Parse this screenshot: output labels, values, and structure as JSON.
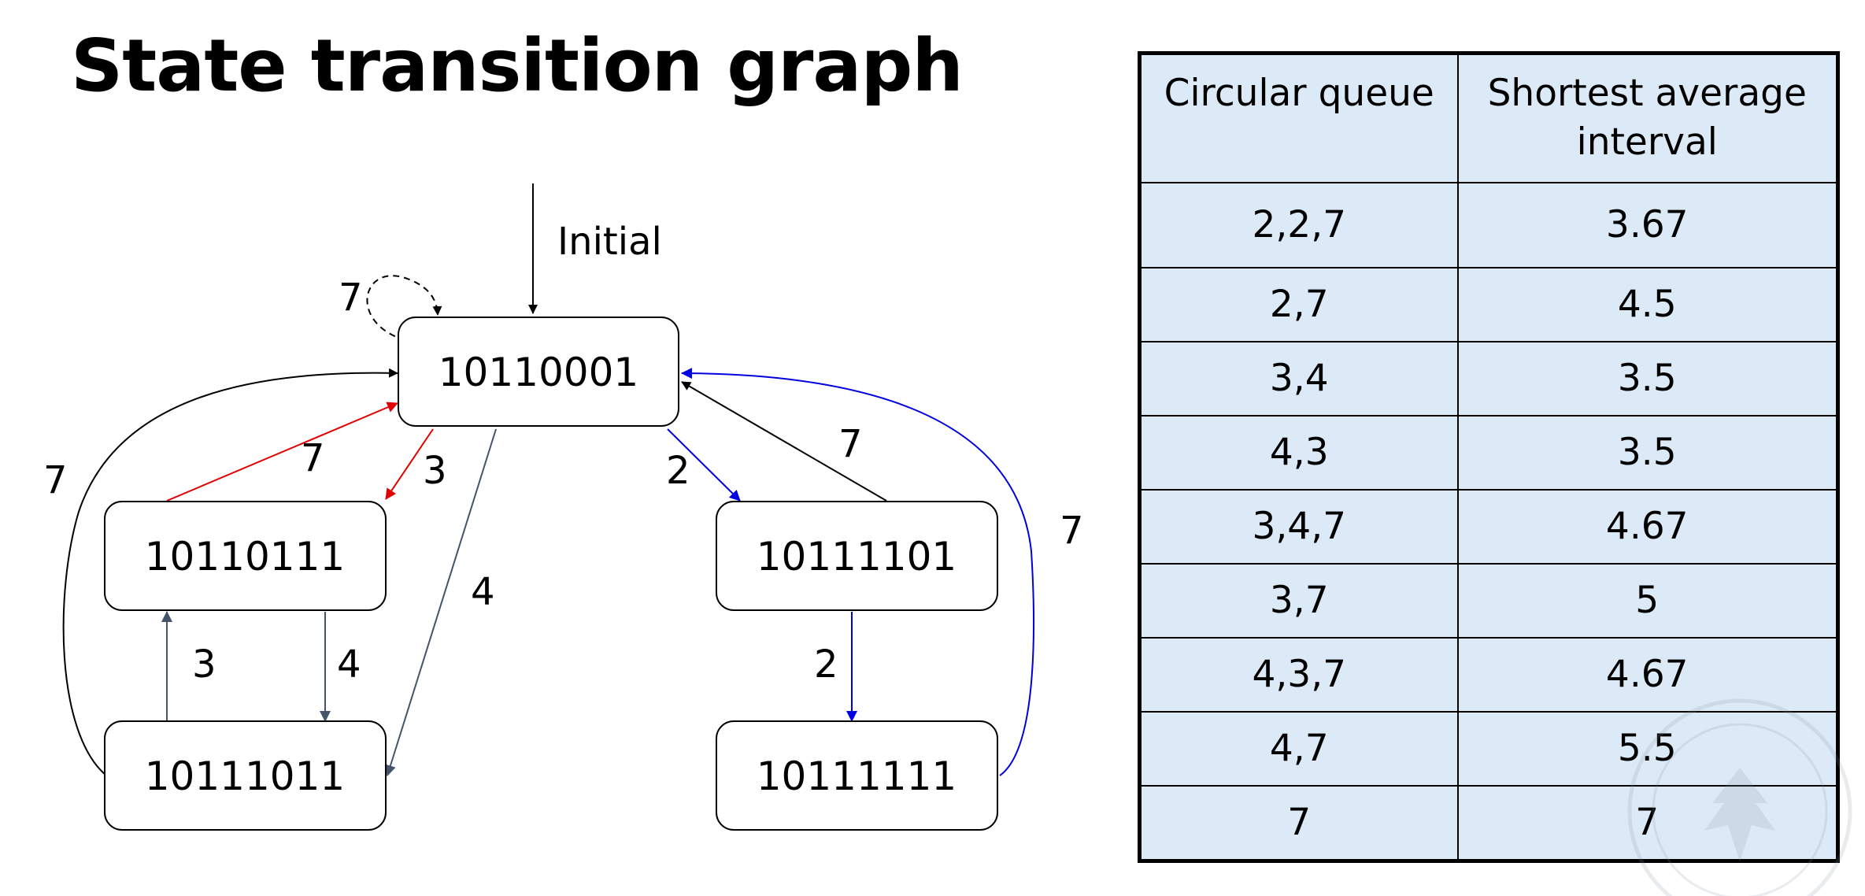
{
  "title": "State transition graph",
  "diagram": {
    "initial_label": "Initial",
    "states": {
      "s0": "10110001",
      "s1": "10110111",
      "s2": "10111011",
      "s3": "10111101",
      "s4": "10111111"
    },
    "edges": [
      {
        "from": "s0",
        "to": "s0",
        "label": "7",
        "style": "dashed",
        "color": "#000000"
      },
      {
        "from": "s0",
        "to": "s1",
        "label": "3",
        "color": "#e00000"
      },
      {
        "from": "s1",
        "to": "s0",
        "label": "7",
        "color": "#e00000"
      },
      {
        "from": "s0",
        "to": "s2",
        "label": "4",
        "color": "#44546a"
      },
      {
        "from": "s0",
        "to": "s3",
        "label": "2",
        "color": "#0000e0"
      },
      {
        "from": "s3",
        "to": "s0",
        "label": "7",
        "color": "#000000"
      },
      {
        "from": "s1",
        "to": "s2",
        "label": "4",
        "color": "#44546a"
      },
      {
        "from": "s2",
        "to": "s1",
        "label": "3",
        "color": "#44546a"
      },
      {
        "from": "s2",
        "to": "s0",
        "label": "7",
        "color": "#000000"
      },
      {
        "from": "s3",
        "to": "s4",
        "label": "2",
        "color": "#0000e0"
      },
      {
        "from": "s4",
        "to": "s0",
        "label": "7",
        "color": "#0000e0"
      }
    ]
  },
  "table": {
    "headers": [
      "Circular queue",
      "Shortest average interval"
    ],
    "rows": [
      [
        "2,2,7",
        "3.67"
      ],
      [
        "2,7",
        "4.5"
      ],
      [
        "3,4",
        "3.5"
      ],
      [
        "4,3",
        "3.5"
      ],
      [
        "3,4,7",
        "4.67"
      ],
      [
        "3,7",
        "5"
      ],
      [
        "4,3,7",
        "4.67"
      ],
      [
        "4,7",
        "5.5"
      ],
      [
        "7",
        "7"
      ]
    ]
  },
  "colors": {
    "table_fill": "#dce9f6",
    "red_edge": "#e00000",
    "blue_edge": "#0000e0",
    "gray_edge": "#44546a"
  },
  "watermark": "university seal"
}
